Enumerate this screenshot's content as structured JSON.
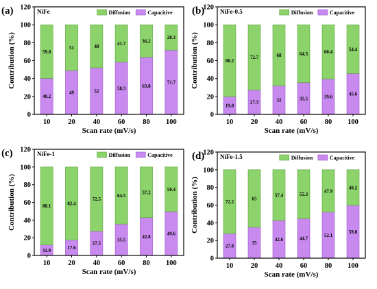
{
  "colors": {
    "diffusion": "#8cd36b",
    "diffusion_edge": "#5aa23c",
    "capacitive": "#c98af0",
    "capacitive_edge": "#9a55c8"
  },
  "chart_data": [
    {
      "panel": "(a)",
      "type": "bar",
      "stacked": true,
      "title": "NiFe",
      "categories": [
        "10",
        "20",
        "40",
        "60",
        "80",
        "100"
      ],
      "series": [
        {
          "name": "Capacitive",
          "values": [
            40.2,
            49,
            52,
            58.3,
            63.8,
            71.7
          ]
        },
        {
          "name": "Diffusion",
          "values": [
            59.8,
            51,
            48,
            41.7,
            36.2,
            28.3
          ]
        }
      ],
      "xlabel": "Scan rate (mV/s)",
      "ylabel": "Contribution (%)",
      "ylim": [
        0,
        120
      ],
      "yticks": [
        0,
        20,
        40,
        60,
        80,
        100,
        120
      ],
      "legend": "top"
    },
    {
      "panel": "(b)",
      "type": "bar",
      "stacked": true,
      "title": "NiFe-0.5",
      "categories": [
        "10",
        "20",
        "40",
        "60",
        "80",
        "100"
      ],
      "series": [
        {
          "name": "Capacitive",
          "values": [
            19.8,
            27.3,
            32,
            35.5,
            39.6,
            45.6
          ]
        },
        {
          "name": "Diffusion",
          "values": [
            80.2,
            72.7,
            68,
            64.5,
            60.4,
            54.4
          ]
        }
      ],
      "xlabel": "Scan rate (mV/s)",
      "ylabel": "Contribution (%)",
      "ylim": [
        0,
        120
      ],
      "yticks": [
        0,
        20,
        40,
        60,
        80,
        100,
        120
      ],
      "legend": "top"
    },
    {
      "panel": "(c)",
      "type": "bar",
      "stacked": true,
      "title": "NiFe-1",
      "categories": [
        "10",
        "20",
        "40",
        "60",
        "80",
        "100"
      ],
      "series": [
        {
          "name": "Capacitive",
          "values": [
            11.9,
            17.6,
            27.5,
            35.5,
            42.8,
            49.6
          ]
        },
        {
          "name": "Diffusion",
          "values": [
            88.1,
            82.4,
            72.5,
            64.5,
            57.2,
            50.4
          ]
        }
      ],
      "xlabel": "Scan rate (mV/s)",
      "ylabel": "Contribution (%)",
      "ylim": [
        0,
        120
      ],
      "yticks": [
        0,
        20,
        40,
        60,
        80,
        100,
        120
      ],
      "legend": "top"
    },
    {
      "panel": "(d)",
      "type": "bar",
      "stacked": true,
      "title": "NiFe-1.5",
      "categories": [
        "10",
        "20",
        "40",
        "60",
        "80",
        "100"
      ],
      "series": [
        {
          "name": "Capacitive",
          "values": [
            27.8,
            35,
            42.6,
            44.7,
            52.1,
            59.8
          ]
        },
        {
          "name": "Diffusion",
          "values": [
            72.2,
            65,
            57.4,
            55.3,
            47.9,
            40.2
          ]
        }
      ],
      "xlabel": "Scan rate (mV/s)",
      "ylabel": "Contribution (%)",
      "ylim": [
        0,
        120
      ],
      "yticks": [
        0,
        20,
        40,
        60,
        80,
        100,
        120
      ],
      "legend": "top"
    }
  ]
}
